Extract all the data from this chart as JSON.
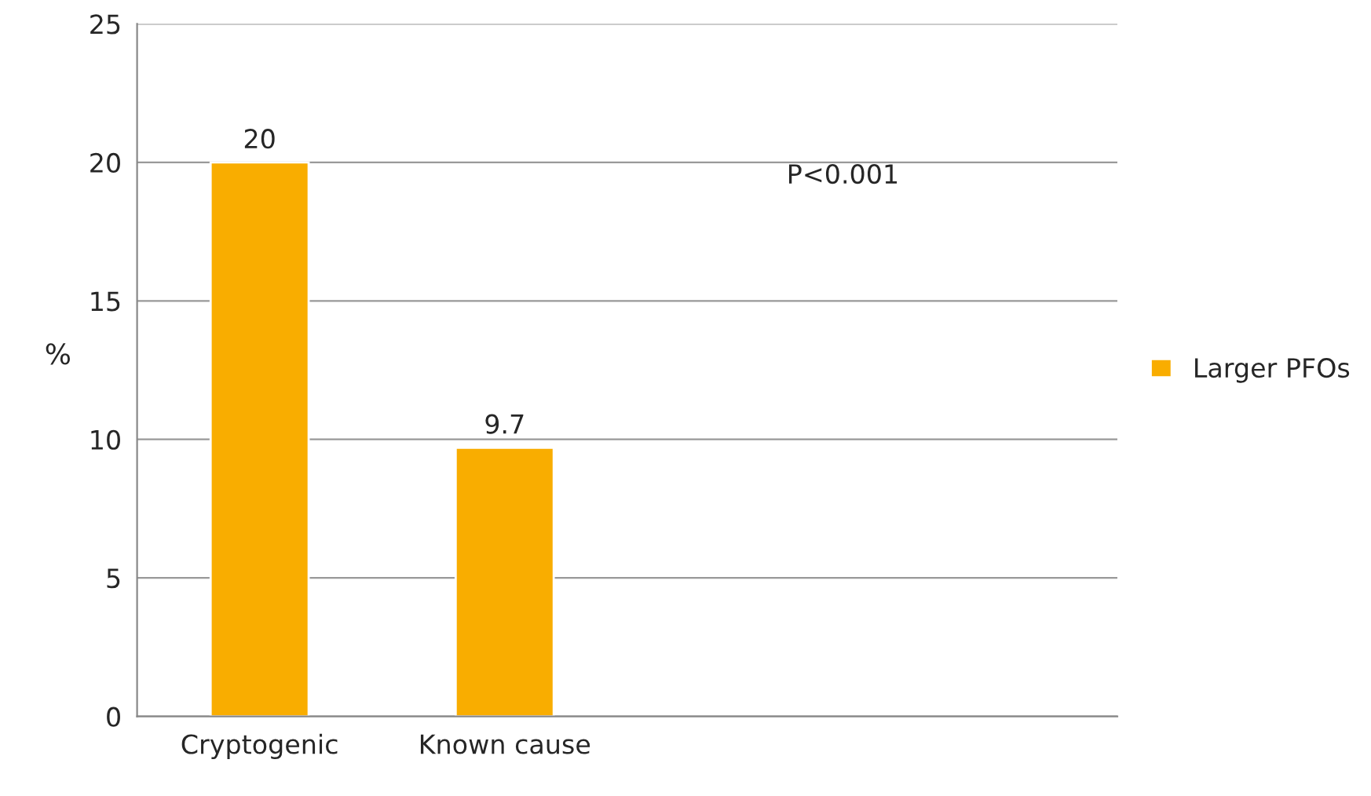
{
  "chart_data": {
    "type": "bar",
    "categories": [
      "Cryptogenic",
      "Known cause",
      null,
      null
    ],
    "series": [
      {
        "name": "Larger PFOs",
        "color": "#f9ad00",
        "values": [
          20,
          9.7,
          null,
          null
        ]
      }
    ],
    "ylabel": "%",
    "ylim": [
      0,
      25
    ],
    "yticks": [
      0,
      5,
      10,
      15,
      20,
      25
    ],
    "grid": "y",
    "legend": "right",
    "data_labels": true,
    "annotations": [
      "P<0.001"
    ]
  }
}
